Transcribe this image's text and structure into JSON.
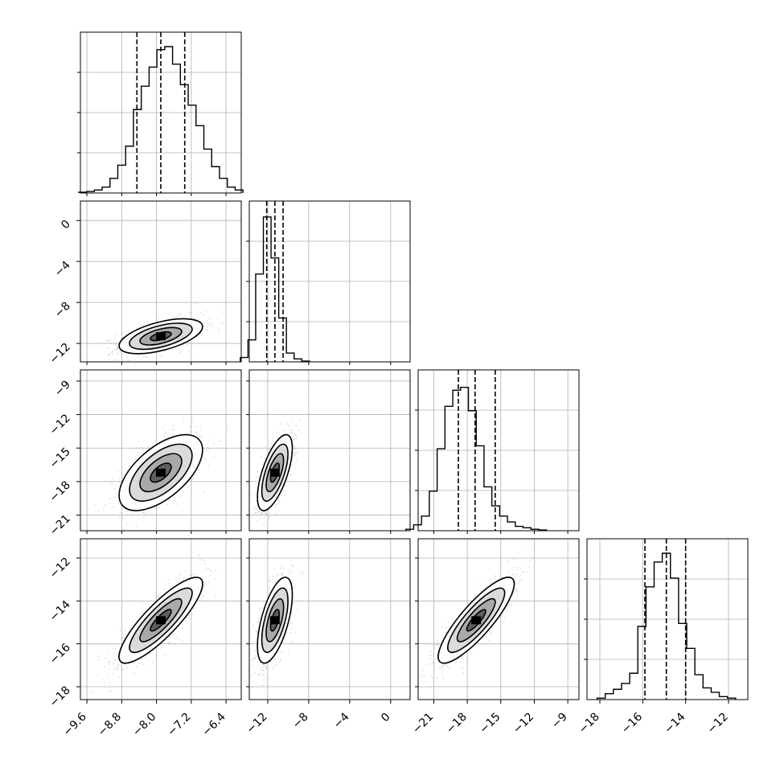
{
  "chart_data": {
    "type": "corner",
    "grid": true,
    "params": [
      {
        "ticks": [
          -9.6,
          -8.8,
          -8.0,
          -7.2,
          -6.4
        ],
        "tick_labels": [
          "−9.6",
          "−8.8",
          "−8.0",
          "−7.2",
          "−6.4"
        ],
        "range": [
          -9.75,
          -6.05
        ],
        "quantiles": [
          -8.45,
          -7.9,
          -7.35
        ],
        "mean": -7.9,
        "sd": 0.48
      },
      {
        "ticks": [
          -12,
          -8,
          -4,
          0
        ],
        "tick_labels": [
          "−12",
          "−8",
          "−4",
          "0"
        ],
        "range": [
          -13.8,
          1.9
        ],
        "quantiles": [
          -12.1,
          -11.3,
          -10.5
        ],
        "mean": -11.3,
        "sd": 0.85
      },
      {
        "ticks": [
          -21,
          -18,
          -15,
          -12,
          -9
        ],
        "tick_labels": [
          "−21",
          "−18",
          "−15",
          "−12",
          "−9"
        ],
        "range": [
          -22.4,
          -8.0
        ],
        "quantiles": [
          -18.8,
          -17.3,
          -15.5
        ],
        "mean": -17.2,
        "sd": 1.7
      },
      {
        "ticks": [
          -18,
          -16,
          -14,
          -12
        ],
        "tick_labels": [
          "−18",
          "−16",
          "−14",
          "−12"
        ],
        "range": [
          -18.6,
          -11.1
        ],
        "quantiles": [
          -15.9,
          -14.9,
          -14.0
        ],
        "mean": -14.9,
        "sd": 1.0
      }
    ],
    "histograms": [
      {
        "bin_width": 0.18,
        "counts": [
          0.005,
          0.01,
          0.02,
          0.04,
          0.1,
          0.19,
          0.32,
          0.57,
          0.73,
          0.86,
          0.98,
          1.0,
          0.88,
          0.74,
          0.6,
          0.46,
          0.3,
          0.18,
          0.1,
          0.04,
          0.02
        ]
      },
      {
        "bin_width": 0.75,
        "counts": [
          0.03,
          0.15,
          0.6,
          0.99,
          0.71,
          0.3,
          0.06,
          0.02,
          0.005
        ]
      },
      {
        "bin_width": 0.7,
        "counts": [
          0.01,
          0.04,
          0.1,
          0.27,
          0.56,
          0.85,
          0.96,
          0.98,
          0.82,
          0.58,
          0.3,
          0.17,
          0.1,
          0.06,
          0.03,
          0.02,
          0.01,
          0.005
        ]
      },
      {
        "bin_width": 0.38,
        "counts": [
          0.01,
          0.04,
          0.07,
          0.11,
          0.18,
          0.5,
          0.77,
          0.94,
          1.0,
          0.83,
          0.52,
          0.35,
          0.17,
          0.08,
          0.05,
          0.02,
          0.01
        ]
      }
    ],
    "correlations": [
      {
        "x": 0,
        "y": 1,
        "r": 0.55
      },
      {
        "x": 0,
        "y": 2,
        "r": 0.6
      },
      {
        "x": 1,
        "y": 2,
        "r": 0.65
      },
      {
        "x": 0,
        "y": 3,
        "r": 0.85
      },
      {
        "x": 1,
        "y": 3,
        "r": 0.6
      },
      {
        "x": 2,
        "y": 3,
        "r": 0.85
      }
    ],
    "contour_levels_sigma": [
      0.5,
      1.0,
      1.5,
      2.0
    ],
    "colors": {
      "line": "#000000",
      "grid": "#b0b0b0",
      "points": "#808080",
      "frame": "#000000"
    }
  }
}
